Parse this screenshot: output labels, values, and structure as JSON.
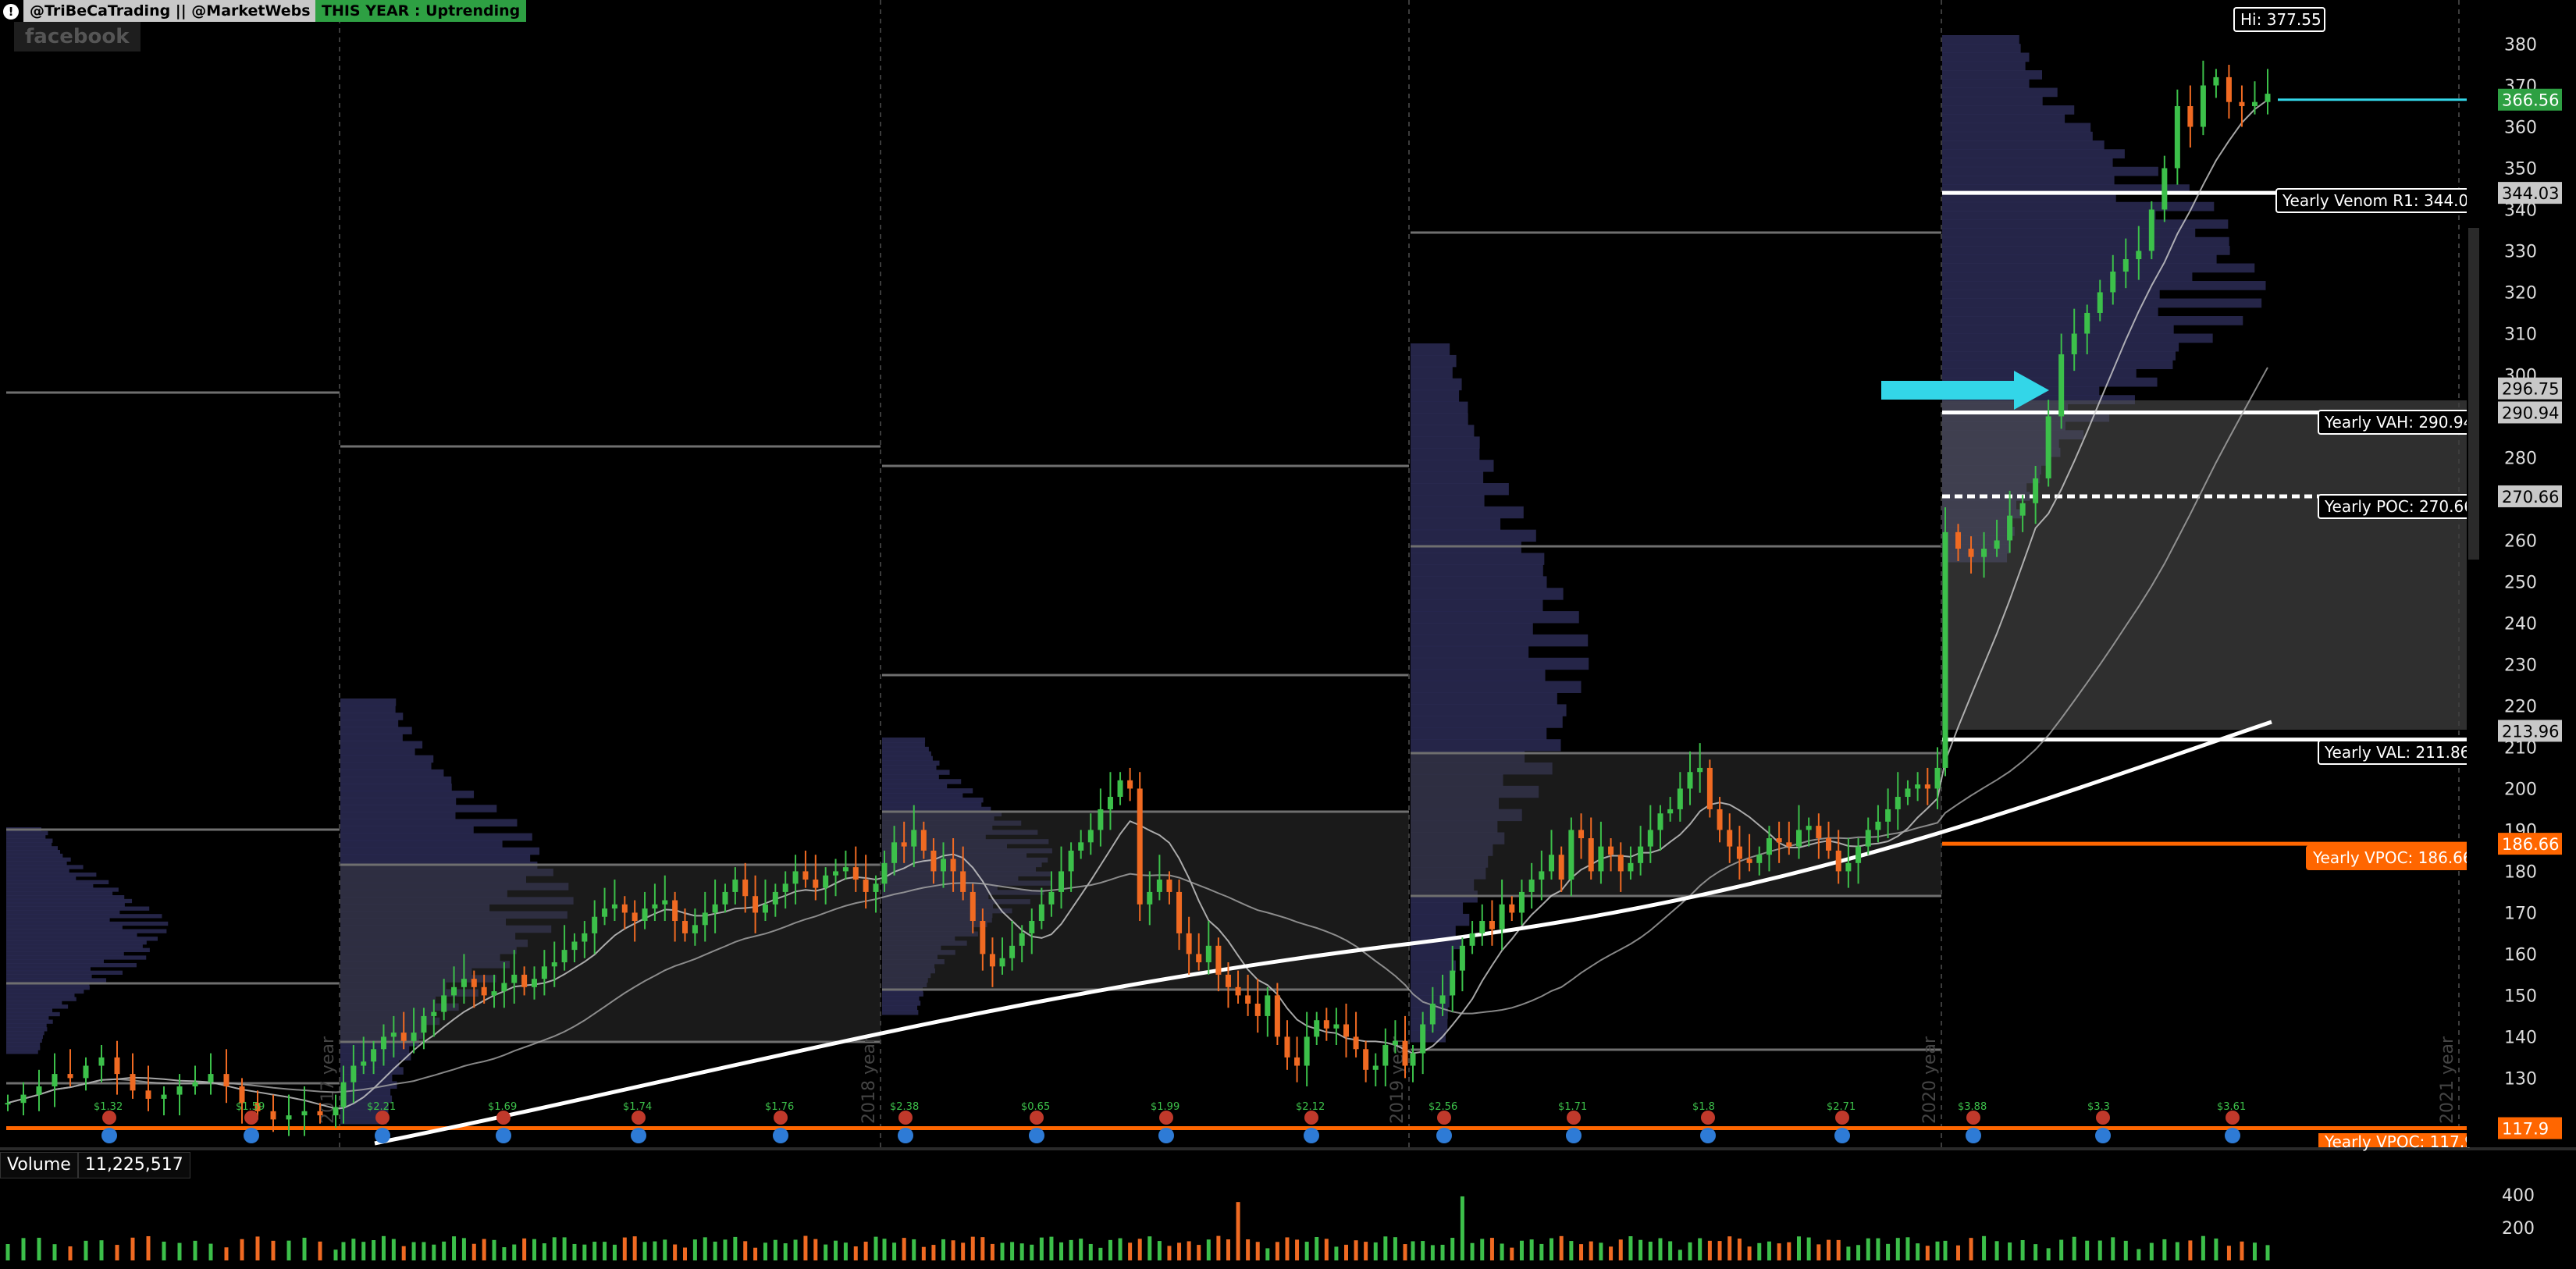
{
  "header": {
    "handles": "@TriBeCaTrading || @MarketWebs",
    "trend": "THIS YEAR : Uptrending",
    "symbol": "facebook"
  },
  "colors": {
    "up": "#3cc04a",
    "down": "#f06a22",
    "vpoc": "#ff6600",
    "cyan": "#33d6e8",
    "value_area": "#4d4d4d",
    "profile": "#2b2b55",
    "label_green": "#2ea043"
  },
  "icons": [
    "info-icon",
    "dividend-icon",
    "earnings-icon"
  ],
  "chart_data": [
    {
      "type": "candlestick",
      "x": {
        "start": "2016-07",
        "end": "2021-03",
        "unit": "week"
      },
      "y_axis": {
        "ylim": [
          118,
          385
        ],
        "ticks": [
          130,
          140,
          150,
          160,
          170,
          180,
          190,
          200,
          210,
          220,
          230,
          240,
          250,
          260,
          270,
          280,
          290,
          300,
          310,
          320,
          330,
          340,
          350,
          360,
          370,
          380
        ]
      },
      "year_separators": [
        "2017 year",
        "2018 year",
        "2019 year",
        "2020 year",
        "2021 year"
      ],
      "series": [
        {
          "values": [
            {
              "year": 2016,
              "price": [
                124,
                126,
                128,
                131,
                130,
                133,
                135,
                131,
                127,
                125,
                126,
                128,
                129,
                131,
                128,
                124,
                122,
                120,
                121,
                122,
                121,
                123
              ]
            },
            {
              "year": 2017,
              "price": [
                129,
                133,
                134,
                137,
                140,
                141,
                139,
                141,
                145,
                146,
                150,
                152,
                154,
                152,
                150,
                151,
                153,
                155,
                152,
                154,
                157,
                158,
                161,
                163,
                165,
                169,
                171,
                172,
                170,
                168,
                171,
                172,
                173,
                168,
                165,
                167,
                170,
                172,
                175,
                178,
                174,
                170,
                172,
                175,
                177,
                180,
                178,
                176,
                179,
                180,
                181,
                178,
                175,
                177
              ]
            },
            {
              "year": 2018,
              "price": [
                182,
                187,
                186,
                190,
                185,
                180,
                183,
                180,
                175,
                168,
                160,
                157,
                159,
                162,
                165,
                168,
                172,
                175,
                180,
                185,
                187,
                190,
                195,
                198,
                202,
                200,
                172,
                175,
                178,
                175,
                165,
                160,
                158,
                162,
                155,
                152,
                150,
                148,
                145,
                150,
                140,
                135,
                133,
                140,
                144,
                142,
                143,
                140,
                137,
                132,
                133,
                138,
                139,
                133
              ]
            },
            {
              "year": 2019,
              "price": [
                136,
                143,
                148,
                150,
                156,
                162,
                165,
                168,
                166,
                172,
                170,
                175,
                178,
                180,
                184,
                178,
                190,
                188,
                180,
                186,
                184,
                180,
                182,
                186,
                190,
                194,
                195,
                200,
                204,
                205,
                195,
                190,
                186,
                183,
                182,
                184,
                188,
                187,
                186,
                190,
                191,
                188,
                185,
                180,
                182,
                186,
                190,
                192,
                195,
                198,
                200,
                201,
                200,
                205
              ]
            },
            {
              "year": 2020,
              "price": [
                208,
                214,
                218,
                222,
                217,
                210,
                200,
                185,
                165,
                150,
                155,
                160,
                170,
                177,
                186,
                195,
                205,
                215,
                225,
                235,
                230,
                233,
                238,
                242,
                236,
                245,
                248,
                254,
                260,
                265,
                262,
                268,
                272,
                275,
                282,
                280,
                268,
                262,
                260,
                255,
                258,
                262,
                270,
                275,
                270,
                278,
                276,
                275,
                272,
                270,
                272,
                275,
                273,
                270
              ]
            },
            {
              "year": 2021,
              "price": [
                262,
                258,
                256,
                258,
                260,
                266,
                269,
                275,
                290,
                305,
                310,
                315,
                320,
                325,
                328,
                330,
                340,
                350,
                365,
                360,
                370,
                372,
                366,
                365,
                366,
                368
              ]
            }
          ]
        }
      ],
      "moving_averages": [
        "fast",
        "slow",
        "200-period"
      ],
      "levels": [
        {
          "name": "Yearly Venom R1",
          "price": 344.03,
          "label": "Yearly Venom R1: 344.03"
        },
        {
          "name": "Yearly VAH",
          "price": 290.94,
          "label": "Yearly VAH: 290.94"
        },
        {
          "name": "Yearly POC",
          "price": 270.66,
          "label": "Yearly POC: 270.66"
        },
        {
          "name": "Yearly VAL",
          "price": 211.86,
          "label": "Yearly VAL: 211.86"
        },
        {
          "name": "Yearly VPOC",
          "price": 186.66,
          "label": "Yearly VPOC: 186.66",
          "color": "#ff6600"
        },
        {
          "name": "Yearly VPOC",
          "price": 117.9,
          "label": "Yearly VPOC: 117.9",
          "color": "#ff6600"
        }
      ],
      "price_labels": [
        {
          "text": "366.56",
          "price": 366.56,
          "style": "green"
        },
        {
          "text": "344.03",
          "price": 344.03,
          "style": "grey"
        },
        {
          "text": "296.75",
          "price": 296.75,
          "style": "grey"
        },
        {
          "text": "290.94",
          "price": 290.94,
          "style": "grey"
        },
        {
          "text": "270.66",
          "price": 270.66,
          "style": "grey"
        },
        {
          "text": "213.96",
          "price": 213.96,
          "style": "grey"
        },
        {
          "text": "186.66",
          "price": 186.66,
          "style": "orange"
        },
        {
          "text": "117.9",
          "price": 117.9,
          "style": "orange"
        }
      ],
      "high_label": {
        "text": "Hi: 377.55",
        "price": 377.55
      },
      "dividend_labels": [
        "$1.32",
        "$1.59",
        "$2.21",
        "$1.69",
        "$1.74",
        "$1.76",
        "$2.38",
        "$0.65",
        "$1.99",
        "$2.12",
        "$2.56",
        "$1.71",
        "$1.8",
        "$2.71",
        "$3.88",
        "$3.3",
        "$3.61"
      ]
    },
    {
      "type": "bar",
      "title": "Volume",
      "latest": "11,225,517",
      "y_axis": {
        "ylim": [
          0,
          500
        ],
        "ticks": [
          200,
          400
        ]
      }
    }
  ]
}
